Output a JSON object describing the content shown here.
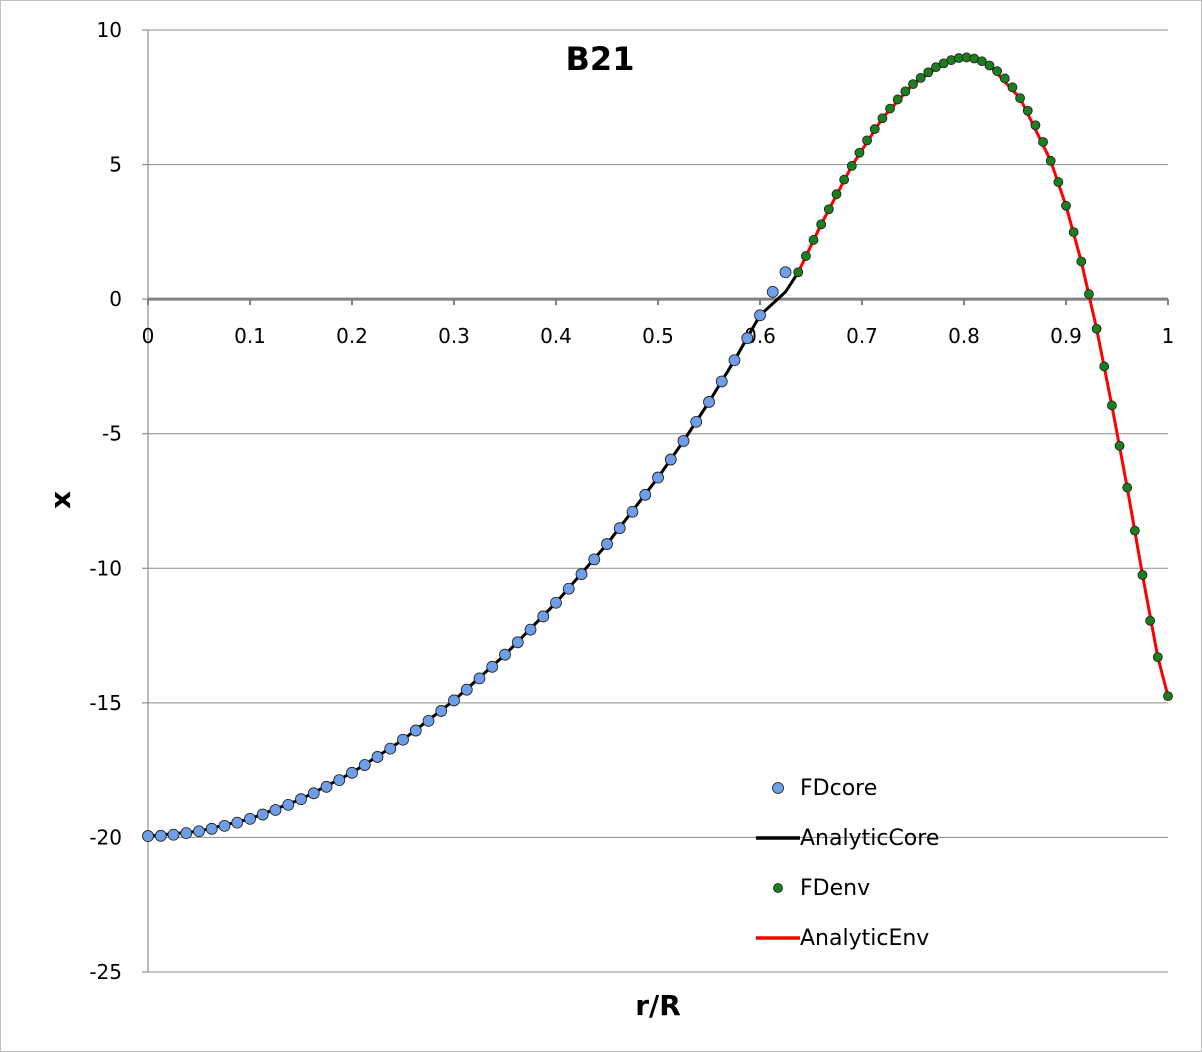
{
  "chart_data": {
    "type": "line",
    "title": "B21",
    "xlabel": "r/R",
    "ylabel": "x",
    "xlim": [
      0,
      1
    ],
    "ylim": [
      -25,
      10
    ],
    "x_ticks": [
      "0",
      "0.1",
      "0.2",
      "0.3",
      "0.4",
      "0.5",
      "0.6",
      "0.7",
      "0.8",
      "0.9",
      "1"
    ],
    "y_ticks": [
      "10",
      "5",
      "0",
      "-5",
      "-10",
      "-15",
      "-20",
      "-25"
    ],
    "grid": "horizontal",
    "legend_position": "bottom-right",
    "series": [
      {
        "name": "FDcore",
        "style": "markers",
        "color": "#6f9ee8",
        "x": [
          0.0,
          0.0125,
          0.025,
          0.0375,
          0.05,
          0.0625,
          0.075,
          0.0875,
          0.1,
          0.1125,
          0.125,
          0.1375,
          0.15,
          0.1625,
          0.175,
          0.1875,
          0.2,
          0.2125,
          0.225,
          0.2375,
          0.25,
          0.2625,
          0.275,
          0.2875,
          0.3,
          0.3125,
          0.325,
          0.3375,
          0.35,
          0.3625,
          0.375,
          0.3875,
          0.4,
          0.4125,
          0.425,
          0.4375,
          0.45,
          0.4625,
          0.475,
          0.4875,
          0.5,
          0.5125,
          0.525,
          0.5375,
          0.55,
          0.5625,
          0.575,
          0.5875,
          0.6,
          0.6125,
          0.625
        ],
        "y": [
          -19.95,
          -19.94,
          -19.9,
          -19.84,
          -19.77,
          -19.68,
          -19.57,
          -19.45,
          -19.31,
          -19.15,
          -18.98,
          -18.79,
          -18.58,
          -18.36,
          -18.12,
          -17.87,
          -17.6,
          -17.31,
          -17.01,
          -16.7,
          -16.37,
          -16.03,
          -15.67,
          -15.3,
          -14.91,
          -14.51,
          -14.09,
          -13.66,
          -13.21,
          -12.75,
          -12.28,
          -11.79,
          -11.28,
          -10.76,
          -10.22,
          -9.67,
          -9.1,
          -8.51,
          -7.9,
          -7.27,
          -6.63,
          -5.96,
          -5.27,
          -4.56,
          -3.82,
          -3.06,
          -2.27,
          -1.45,
          -0.6,
          0.27,
          1.0
        ]
      },
      {
        "name": "AnalyticCore",
        "style": "line",
        "color": "#000000",
        "x": [
          0.0,
          0.05,
          0.1,
          0.15,
          0.2,
          0.25,
          0.3,
          0.35,
          0.4,
          0.45,
          0.5,
          0.525,
          0.55,
          0.575,
          0.6,
          0.625,
          0.6375
        ],
        "y": [
          -19.95,
          -19.77,
          -19.31,
          -18.58,
          -17.6,
          -16.37,
          -14.91,
          -13.21,
          -11.28,
          -9.1,
          -6.63,
          -5.27,
          -3.82,
          -2.27,
          -0.6,
          0.27,
          1.0
        ]
      },
      {
        "name": "FDenv",
        "style": "markers",
        "color": "#1e7d1e",
        "x": [
          0.6375,
          0.645,
          0.6525,
          0.66,
          0.6675,
          0.675,
          0.6825,
          0.69,
          0.6975,
          0.705,
          0.7125,
          0.72,
          0.7275,
          0.735,
          0.7425,
          0.75,
          0.7575,
          0.765,
          0.7725,
          0.78,
          0.7875,
          0.795,
          0.8025,
          0.81,
          0.8175,
          0.825,
          0.8325,
          0.84,
          0.8475,
          0.855,
          0.8625,
          0.87,
          0.8775,
          0.885,
          0.8925,
          0.9,
          0.9075,
          0.915,
          0.9225,
          0.93,
          0.9375,
          0.945,
          0.9525,
          0.96,
          0.9675,
          0.975,
          0.9825,
          0.99,
          1.0
        ],
        "y": [
          1.0,
          1.6,
          2.2,
          2.78,
          3.34,
          3.9,
          4.44,
          4.95,
          5.44,
          5.9,
          6.32,
          6.72,
          7.08,
          7.42,
          7.72,
          7.99,
          8.22,
          8.43,
          8.62,
          8.76,
          8.88,
          8.96,
          8.98,
          8.94,
          8.84,
          8.68,
          8.47,
          8.2,
          7.87,
          7.47,
          7.0,
          6.46,
          5.84,
          5.14,
          4.35,
          3.47,
          2.49,
          1.4,
          0.19,
          -1.1,
          -2.5,
          -3.95,
          -5.45,
          -7.0,
          -8.6,
          -10.25,
          -11.95,
          -13.3,
          -14.75
        ]
      },
      {
        "name": "AnalyticEnv",
        "style": "line",
        "color": "#ff0000",
        "x": [
          0.6375,
          0.66,
          0.69,
          0.72,
          0.75,
          0.78,
          0.8025,
          0.825,
          0.855,
          0.885,
          0.9,
          0.915,
          0.93,
          0.945,
          0.96,
          0.975,
          0.99,
          1.0
        ],
        "y": [
          1.0,
          2.78,
          4.95,
          6.72,
          7.99,
          8.76,
          8.98,
          8.68,
          7.47,
          5.14,
          3.47,
          1.4,
          -1.1,
          -3.95,
          -7.0,
          -10.25,
          -13.3,
          -14.75
        ]
      }
    ]
  }
}
